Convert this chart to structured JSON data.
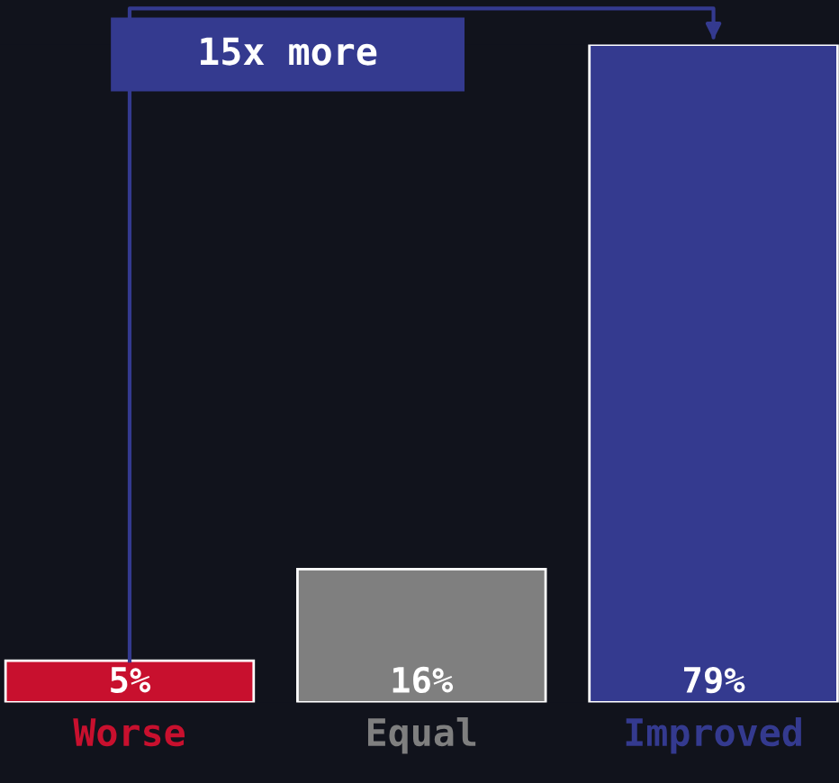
{
  "chart_data": {
    "type": "bar",
    "categories": [
      "Worse",
      "Equal",
      "Improved"
    ],
    "values": [
      5,
      16,
      79
    ],
    "colors": [
      "#c8102e",
      "#7f7f7f",
      "#343a8f"
    ],
    "value_labels": [
      "5%",
      "16%",
      "79%"
    ],
    "annotations": [
      "15x more"
    ]
  }
}
